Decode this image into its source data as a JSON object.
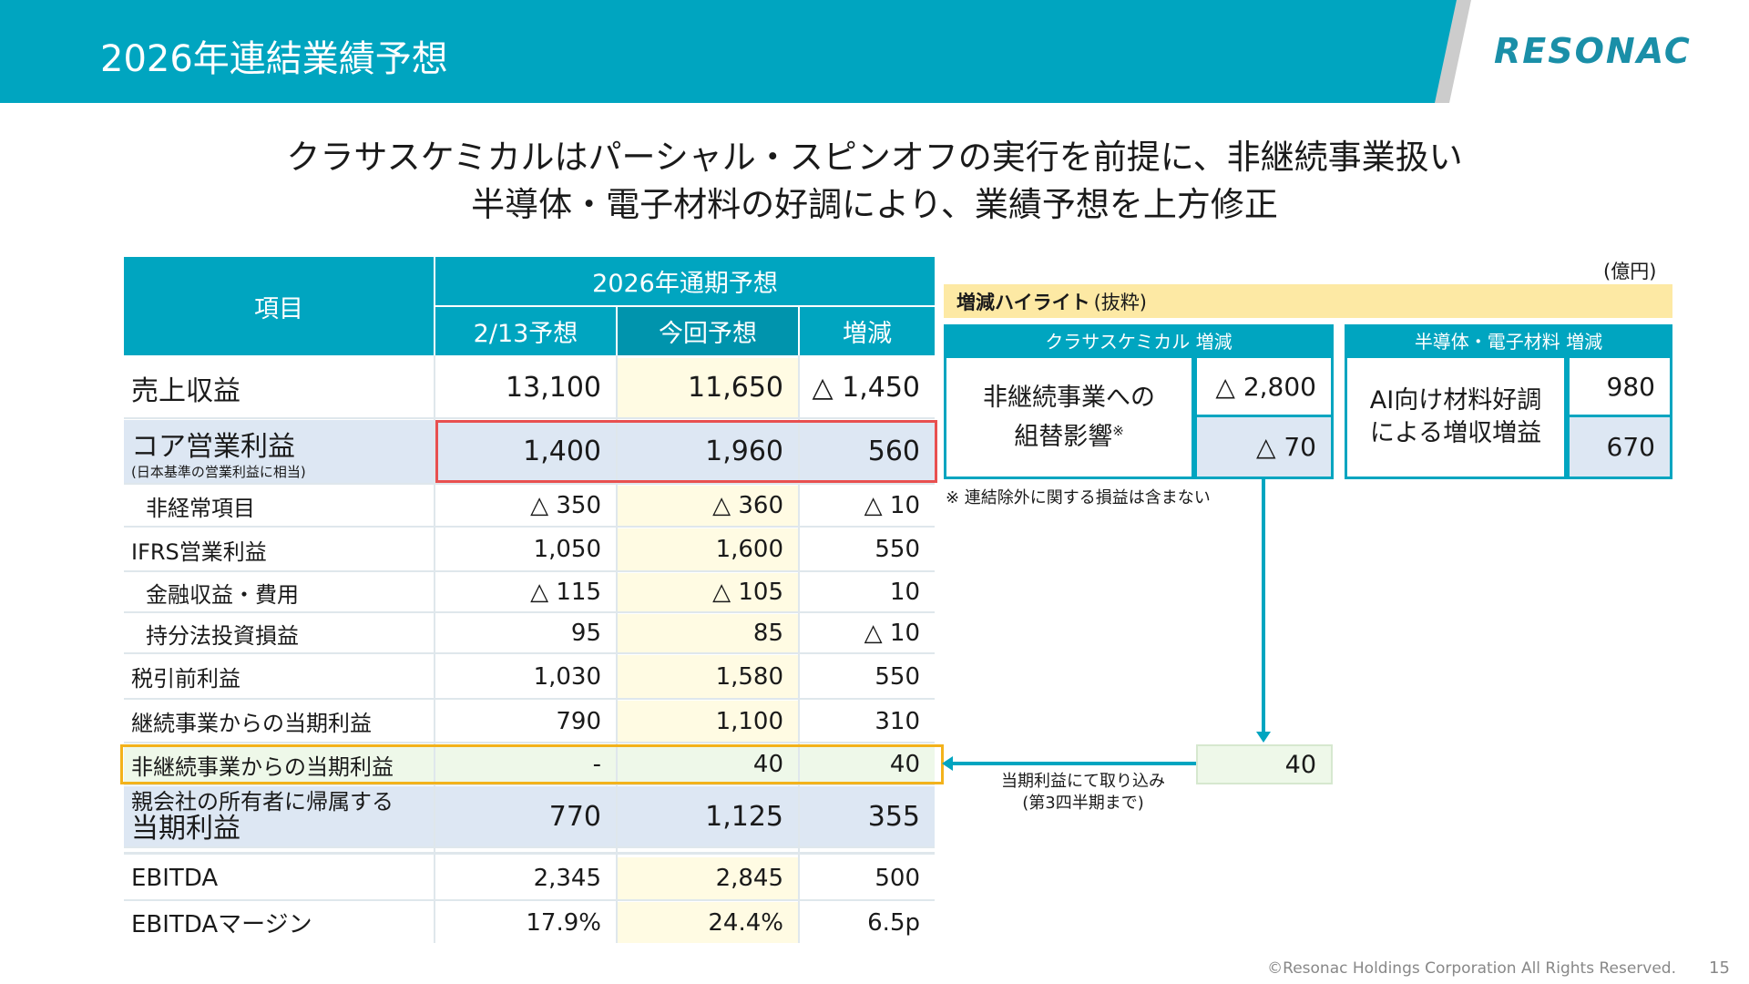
{
  "header": {
    "title": "2026年連結業績予想",
    "logo_text": "RESONAC"
  },
  "headline": {
    "line1": "クラサスケミカルはパーシャル・スピンオフの実行を前提に、非継続事業扱い",
    "line2": "半導体・電子材料の好調により、業績予想を上方修正"
  },
  "table": {
    "item_header": "項目",
    "period_header": "2026年通期予想",
    "col_prev": "2/13予想",
    "col_curr": "今回予想",
    "col_diff": "増減",
    "rows": [
      {
        "label": "売上収益",
        "prev": "13,100",
        "curr": "11,650",
        "diff": "△ 1,450"
      },
      {
        "label": "コア営業利益",
        "sub": "(日本基準の営業利益に相当)",
        "prev": "1,400",
        "curr": "1,960",
        "diff": "560"
      },
      {
        "label": "非経常項目",
        "prev": "△ 350",
        "curr": "△ 360",
        "diff": "△ 10"
      },
      {
        "label": "IFRS営業利益",
        "prev": "1,050",
        "curr": "1,600",
        "diff": "550"
      },
      {
        "label": "金融収益・費用",
        "prev": "△ 115",
        "curr": "△ 105",
        "diff": "10"
      },
      {
        "label": "持分法投資損益",
        "prev": "95",
        "curr": "85",
        "diff": "△ 10"
      },
      {
        "label": "税引前利益",
        "prev": "1,030",
        "curr": "1,580",
        "diff": "550"
      },
      {
        "label": "継続事業からの当期利益",
        "prev": "790",
        "curr": "1,100",
        "diff": "310"
      },
      {
        "label": "非継続事業からの当期利益",
        "prev": "-",
        "curr": "40",
        "diff": "40"
      },
      {
        "label_line1": "親会社の所有者に帰属する",
        "label_line2": "当期利益",
        "prev": "770",
        "curr": "1,125",
        "diff": "355"
      },
      {
        "label": "EBITDA",
        "prev": "2,345",
        "curr": "2,845",
        "diff": "500"
      },
      {
        "label": "EBITDAマージン",
        "prev": "17.9%",
        "curr": "24.4%",
        "diff": "6.5p"
      }
    ]
  },
  "highlights": {
    "unit": "(億円)",
    "title": "増減ハイライト",
    "title_note": "(抜粋)",
    "kurasus": {
      "header": "クラサスケミカル 増減",
      "label_line1": "非継続事業への",
      "label_line2": "組替影響",
      "label_mark": "※",
      "value1": "△ 2,800",
      "value2": "△ 70"
    },
    "semi": {
      "header": "半導体・電子材料 増減",
      "label_line1": "AI向け材料好調",
      "label_line2": "による増収増益",
      "value1": "980",
      "value2": "670"
    },
    "footnote": "※ 連結除外に関する損益は含まない",
    "transfer_value": "40",
    "transfer_note_line1": "当期利益にて取り込み",
    "transfer_note_line2": "(第3四半期まで)"
  },
  "footer": {
    "copyright": "©Resonac Holdings Corporation  All Rights Reserved.",
    "page": "15"
  },
  "colors": {
    "accent": "#00a5c0",
    "highlight_band": "#fde9a4",
    "red_box": "#e85050",
    "orange_box": "#f3b21b"
  }
}
